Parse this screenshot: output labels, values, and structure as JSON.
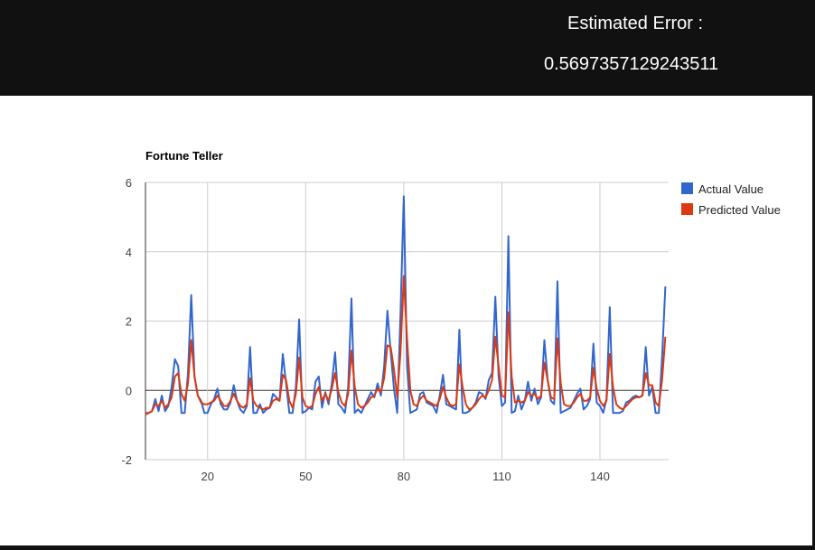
{
  "header": {
    "error_label": "Estimated Error :",
    "error_value": "0.5697357129243511"
  },
  "colors": {
    "actual": "#3366cc",
    "predicted": "#dc3912",
    "grid": "#cccccc",
    "axis": "#333333",
    "header_bg": "#111111"
  },
  "chart_data": {
    "type": "line",
    "title": "Fortune Teller",
    "xlabel": "",
    "ylabel": "",
    "xlim": [
      1,
      161
    ],
    "ylim": [
      -2,
      6
    ],
    "x_ticks": [
      20,
      50,
      80,
      110,
      140
    ],
    "y_ticks": [
      -2,
      0,
      2,
      4,
      6
    ],
    "grid": true,
    "legend_position": "right",
    "x_start": 1,
    "series": [
      {
        "name": "Actual Value",
        "color": "#3366cc",
        "values": [
          -0.65,
          -0.65,
          -0.6,
          -0.25,
          -0.6,
          -0.15,
          -0.6,
          -0.45,
          0.1,
          0.9,
          0.7,
          -0.65,
          -0.65,
          0.5,
          2.75,
          0.4,
          -0.15,
          -0.3,
          -0.65,
          -0.65,
          -0.4,
          -0.25,
          0.05,
          -0.4,
          -0.55,
          -0.55,
          -0.35,
          0.15,
          -0.3,
          -0.55,
          -0.65,
          -0.45,
          1.25,
          -0.65,
          -0.65,
          -0.4,
          -0.65,
          -0.55,
          -0.5,
          -0.1,
          -0.2,
          -0.3,
          1.05,
          0.2,
          -0.65,
          -0.65,
          0.1,
          2.05,
          -0.65,
          -0.6,
          -0.5,
          -0.55,
          0.25,
          0.4,
          -0.5,
          -0.05,
          -0.4,
          0.2,
          1.1,
          -0.4,
          -0.5,
          -0.65,
          0.1,
          2.65,
          -0.65,
          -0.55,
          -0.65,
          -0.45,
          -0.25,
          -0.05,
          -0.2,
          0.2,
          -0.15,
          0.7,
          2.3,
          1.1,
          0.05,
          -0.65,
          2.2,
          5.6,
          0.7,
          -0.65,
          -0.6,
          -0.55,
          -0.1,
          -0.05,
          -0.35,
          -0.4,
          -0.45,
          -0.65,
          -0.15,
          0.45,
          -0.4,
          -0.45,
          -0.5,
          -0.55,
          1.75,
          -0.65,
          -0.65,
          -0.6,
          -0.5,
          -0.35,
          -0.05,
          -0.1,
          -0.25,
          0.3,
          0.5,
          2.7,
          0.4,
          -0.45,
          -0.35,
          4.45,
          -0.65,
          -0.6,
          -0.15,
          -0.55,
          -0.3,
          0.25,
          -0.3,
          0.05,
          -0.4,
          -0.2,
          1.45,
          0.3,
          -0.3,
          -0.4,
          3.15,
          -0.65,
          -0.6,
          -0.55,
          -0.5,
          -0.3,
          -0.1,
          0.05,
          -0.55,
          -0.45,
          -0.25,
          1.35,
          -0.35,
          -0.45,
          -0.65,
          -0.25,
          2.4,
          -0.65,
          -0.65,
          -0.65,
          -0.6,
          -0.35,
          -0.3,
          -0.2,
          -0.15,
          -0.2,
          -0.15,
          1.25,
          -0.15,
          0.1,
          -0.65,
          -0.65,
          0.95,
          3.0
        ]
      },
      {
        "name": "Predicted Value",
        "color": "#dc3912",
        "values": [
          -0.7,
          -0.65,
          -0.6,
          -0.4,
          -0.45,
          -0.3,
          -0.5,
          -0.4,
          -0.2,
          0.4,
          0.5,
          -0.1,
          -0.3,
          0.2,
          1.45,
          0.4,
          -0.15,
          -0.35,
          -0.4,
          -0.4,
          -0.35,
          -0.3,
          -0.15,
          -0.3,
          -0.45,
          -0.45,
          -0.3,
          -0.1,
          -0.3,
          -0.45,
          -0.5,
          -0.4,
          0.35,
          -0.3,
          -0.45,
          -0.5,
          -0.55,
          -0.5,
          -0.5,
          -0.3,
          -0.25,
          -0.3,
          0.45,
          0.3,
          -0.3,
          -0.5,
          -0.1,
          0.95,
          -0.2,
          -0.45,
          -0.5,
          -0.45,
          -0.1,
          0.1,
          -0.3,
          -0.1,
          -0.3,
          0.05,
          0.5,
          -0.05,
          -0.35,
          -0.45,
          -0.1,
          1.15,
          0.1,
          -0.4,
          -0.5,
          -0.45,
          -0.35,
          -0.2,
          -0.15,
          0.05,
          -0.05,
          0.35,
          1.3,
          1.25,
          0.6,
          -0.2,
          1.1,
          3.3,
          1.5,
          0.0,
          -0.4,
          -0.45,
          -0.25,
          -0.15,
          -0.3,
          -0.35,
          -0.4,
          -0.45,
          -0.25,
          0.1,
          -0.2,
          -0.4,
          -0.45,
          -0.4,
          0.75,
          0.1,
          -0.4,
          -0.55,
          -0.5,
          -0.4,
          -0.25,
          -0.15,
          -0.2,
          0.0,
          0.3,
          1.55,
          0.7,
          -0.15,
          -0.2,
          2.25,
          0.4,
          -0.35,
          -0.3,
          -0.35,
          -0.3,
          -0.05,
          -0.15,
          -0.1,
          -0.25,
          -0.15,
          0.8,
          0.3,
          -0.2,
          -0.25,
          1.5,
          0.2,
          -0.4,
          -0.45,
          -0.45,
          -0.35,
          -0.2,
          -0.1,
          -0.3,
          -0.3,
          -0.2,
          0.65,
          0.05,
          -0.3,
          -0.45,
          -0.3,
          1.05,
          0.1,
          -0.4,
          -0.5,
          -0.55,
          -0.45,
          -0.35,
          -0.25,
          -0.2,
          -0.2,
          -0.15,
          0.5,
          0.15,
          0.15,
          -0.35,
          -0.45,
          0.3,
          1.55
        ]
      }
    ]
  }
}
